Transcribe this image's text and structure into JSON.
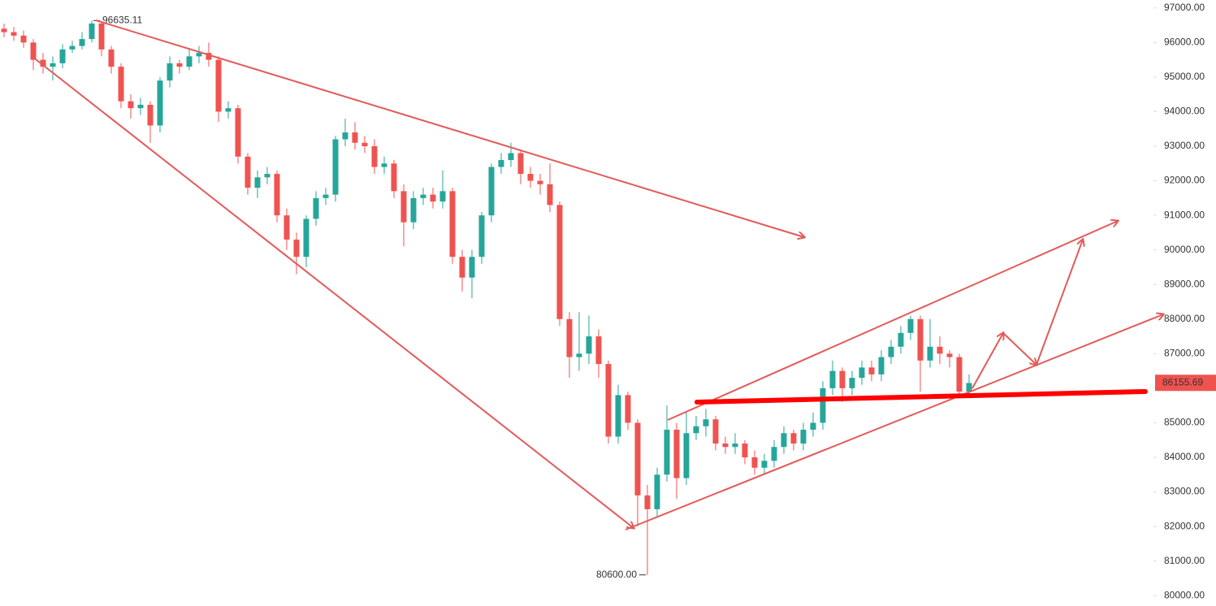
{
  "chart_data": {
    "type": "candlestick",
    "up_color": "#26a69a",
    "down_color": "#ef5350",
    "ylim": [
      79700,
      97230
    ],
    "yticks": [
      {
        "value": 80000,
        "label": "80000.00"
      },
      {
        "value": 81000,
        "label": "81000.00"
      },
      {
        "value": 82000,
        "label": "82000.00"
      },
      {
        "value": 83000,
        "label": "83000.00"
      },
      {
        "value": 84000,
        "label": "84000.00"
      },
      {
        "value": 85000,
        "label": "85000.00"
      },
      {
        "value": 86000,
        "label": "86000.00"
      },
      {
        "value": 87000,
        "label": "87000.00"
      },
      {
        "value": 88000,
        "label": "88000.00"
      },
      {
        "value": 89000,
        "label": "89000.00"
      },
      {
        "value": 90000,
        "label": "90000.00"
      },
      {
        "value": 91000,
        "label": "91000.00"
      },
      {
        "value": 92000,
        "label": "92000.00"
      },
      {
        "value": 93000,
        "label": "93000.00"
      },
      {
        "value": 94000,
        "label": "94000.00"
      },
      {
        "value": 95000,
        "label": "95000.00"
      },
      {
        "value": 96000,
        "label": "96000.00"
      },
      {
        "value": 97000,
        "label": "97000.00"
      }
    ],
    "open": [
      96400,
      96300,
      96200,
      96000,
      95500,
      95300,
      95400,
      95800,
      95900,
      96100,
      96550,
      95800,
      95300,
      94300,
      94100,
      94200,
      93600,
      94900,
      95400,
      95300,
      95600,
      95700,
      95500,
      94000,
      94100,
      92700,
      91800,
      92100,
      92200,
      91000,
      90300,
      89800,
      90900,
      91500,
      91600,
      93200,
      93400,
      93100,
      93000,
      92400,
      92500,
      91700,
      90800,
      91500,
      91600,
      91400,
      91700,
      89800,
      89200,
      89800,
      91000,
      92400,
      92600,
      92800,
      92200,
      92000,
      91900,
      91300,
      88000,
      86900,
      87000,
      87500,
      86700,
      84600,
      85800,
      85000,
      82900,
      82500,
      83500,
      84800,
      83400,
      84700,
      84900,
      85100,
      84400,
      84300,
      84400,
      84000,
      83700,
      83900,
      84300,
      84700,
      84400,
      84800,
      85000,
      86000,
      86500,
      86000,
      86300,
      86600,
      86400,
      86900,
      87200,
      87600,
      88000,
      86800,
      87200,
      87000,
      86900,
      85900
    ],
    "high": [
      96550,
      96450,
      96350,
      96100,
      95700,
      95600,
      95950,
      96050,
      96300,
      96635.11,
      96600,
      95900,
      95400,
      94500,
      94400,
      94300,
      95000,
      95600,
      95500,
      95800,
      95900,
      96000,
      95600,
      94300,
      94200,
      92800,
      92300,
      92400,
      92300,
      91200,
      90500,
      91000,
      91700,
      91800,
      93300,
      93800,
      93700,
      93300,
      93200,
      92700,
      92600,
      91900,
      91700,
      91800,
      91800,
      92300,
      91800,
      90000,
      90000,
      91100,
      92500,
      92800,
      93100,
      92900,
      92400,
      92200,
      92500,
      91400,
      88200,
      88200,
      88100,
      87700,
      86800,
      86100,
      85900,
      85100,
      83200,
      83700,
      85500,
      85000,
      85300,
      85200,
      85400,
      85200,
      84600,
      84700,
      84500,
      84200,
      84100,
      84500,
      84900,
      84800,
      85000,
      85300,
      86200,
      86800,
      86600,
      86500,
      86800,
      86800,
      87100,
      87400,
      87800,
      88100,
      88100,
      88000,
      87500,
      87100,
      87000,
      86400
    ],
    "low": [
      96150,
      96050,
      95850,
      95200,
      95100,
      94900,
      95250,
      95700,
      95800,
      96000,
      95600,
      95100,
      94100,
      93800,
      93900,
      93100,
      93400,
      94700,
      95100,
      95200,
      95400,
      95300,
      93700,
      93800,
      92500,
      91600,
      91500,
      91900,
      90800,
      90000,
      89300,
      89500,
      90700,
      91300,
      91400,
      93000,
      92900,
      92800,
      92200,
      92200,
      91500,
      90100,
      90600,
      91300,
      91200,
      91200,
      89600,
      88800,
      88600,
      89600,
      90800,
      92200,
      92400,
      91900,
      91800,
      91600,
      91100,
      87800,
      86300,
      86500,
      86700,
      86300,
      84400,
      84400,
      84800,
      82000,
      80600,
      82300,
      83300,
      82800,
      83200,
      84500,
      84600,
      84200,
      84100,
      84100,
      83800,
      83500,
      83500,
      83700,
      84100,
      84200,
      84200,
      84600,
      84800,
      85800,
      85600,
      85800,
      86100,
      86200,
      86200,
      86700,
      87000,
      87400,
      85900,
      86600,
      86700,
      86600,
      85800,
      85800
    ],
    "close": [
      96300,
      96200,
      96000,
      95500,
      95300,
      95400,
      95800,
      95900,
      96100,
      96550,
      95800,
      95300,
      94300,
      94100,
      94200,
      93600,
      94900,
      95400,
      95300,
      95600,
      95700,
      95500,
      94000,
      94100,
      92700,
      91800,
      92100,
      92200,
      91000,
      90300,
      89800,
      90900,
      91500,
      91600,
      93200,
      93400,
      93100,
      93000,
      92400,
      92500,
      91700,
      90800,
      91500,
      91600,
      91400,
      91700,
      89800,
      89200,
      89800,
      91000,
      92400,
      92600,
      92800,
      92200,
      92000,
      91900,
      91300,
      88000,
      86900,
      87000,
      87500,
      86700,
      84600,
      85800,
      85000,
      82900,
      82500,
      83500,
      84800,
      83400,
      84700,
      84900,
      85100,
      84400,
      84300,
      84400,
      84000,
      83700,
      83900,
      84300,
      84700,
      84400,
      84800,
      85000,
      86000,
      86500,
      86000,
      86300,
      86600,
      86400,
      86900,
      87200,
      87600,
      88000,
      86800,
      87200,
      87000,
      86900,
      85900,
      86150
    ],
    "annotations": [
      {
        "value": 96635.11,
        "label": "96635.11"
      },
      {
        "value": 80600,
        "label": "80600.00"
      }
    ],
    "last_price": {
      "value": 86155.69,
      "label": "86155.69"
    }
  }
}
